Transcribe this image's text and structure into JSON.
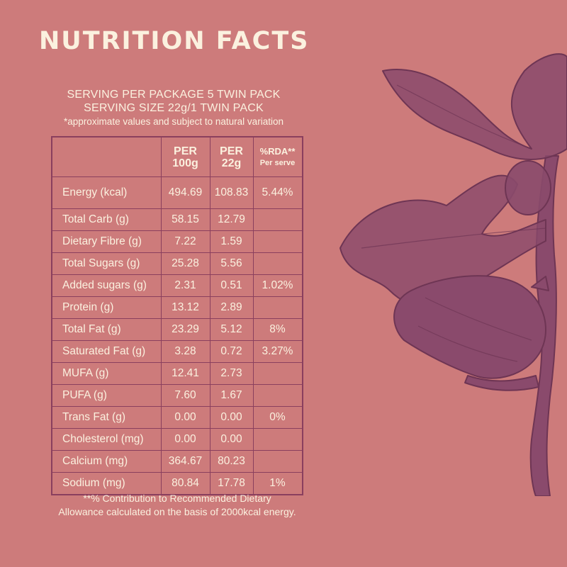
{
  "title": "NUTRITION FACTS",
  "serving": {
    "line1": "SERVING PER PACKAGE 5 TWIN PACK",
    "line2": "SERVING SIZE 22g/1 TWIN PACK",
    "note": "*approximate values and subject to natural variation"
  },
  "headers": {
    "per100_top": "PER",
    "per100_bottom": "100g",
    "per22_top": "PER",
    "per22_bottom": "22g",
    "rda_top": "%RDA**",
    "rda_bottom": "Per serve"
  },
  "rows": [
    {
      "name": "Energy (kcal)",
      "per100": "494.69",
      "per22": "108.83",
      "rda": "5.44%"
    },
    {
      "name": "Total Carb (g)",
      "per100": "58.15",
      "per22": "12.79",
      "rda": ""
    },
    {
      "name": "Dietary Fibre (g)",
      "per100": "7.22",
      "per22": "1.59",
      "rda": ""
    },
    {
      "name": "Total Sugars (g)",
      "per100": "25.28",
      "per22": "5.56",
      "rda": ""
    },
    {
      "name": "Added sugars (g)",
      "per100": "2.31",
      "per22": "0.51",
      "rda": "1.02%"
    },
    {
      "name": "Protein (g)",
      "per100": "13.12",
      "per22": "2.89",
      "rda": ""
    },
    {
      "name": "Total Fat (g)",
      "per100": "23.29",
      "per22": "5.12",
      "rda": "8%"
    },
    {
      "name": "Saturated Fat (g)",
      "per100": "3.28",
      "per22": "0.72",
      "rda": "3.27%"
    },
    {
      "name": "MUFA (g)",
      "per100": "12.41",
      "per22": "2.73",
      "rda": ""
    },
    {
      "name": "PUFA (g)",
      "per100": "7.60",
      "per22": "1.67",
      "rda": ""
    },
    {
      "name": "Trans Fat (g)",
      "per100": "0.00",
      "per22": "0.00",
      "rda": "0%"
    },
    {
      "name": "Cholesterol (mg)",
      "per100": "0.00",
      "per22": "0.00",
      "rda": ""
    },
    {
      "name": "Calcium (mg)",
      "per100": "364.67",
      "per22": "80.23",
      "rda": ""
    },
    {
      "name": "Sodium (mg)",
      "per100": "80.84",
      "per22": "17.78",
      "rda": "1%"
    }
  ],
  "footnote": {
    "line1": "**% Contribution to Recommended Dietary",
    "line2": "Allowance calculated on the basis of 2000kcal energy."
  },
  "illustration": {
    "icon": "fig-branch-icon",
    "color": "#8a4a6c"
  },
  "colors": {
    "background": "#cd7b7b",
    "text": "#fbf1df",
    "border": "#8a3f5e"
  }
}
